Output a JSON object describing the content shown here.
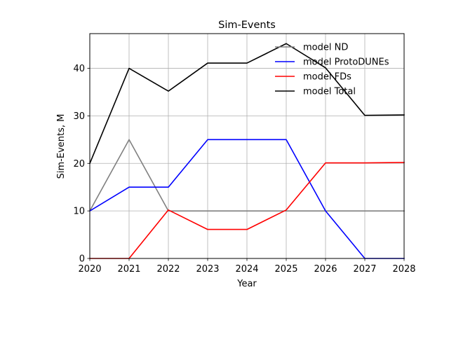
{
  "chart_data": {
    "type": "line",
    "title": "Sim-Events",
    "xlabel": "Year",
    "ylabel": "Sim-Events, M",
    "x": [
      2020,
      2021,
      2022,
      2023,
      2024,
      2025,
      2026,
      2027,
      2028
    ],
    "xlim": [
      2020,
      2028
    ],
    "ylim": [
      0,
      47.3
    ],
    "xticks": [
      "2020",
      "2021",
      "2022",
      "2023",
      "2024",
      "2025",
      "2026",
      "2027",
      "2028"
    ],
    "yticks": [
      0,
      10,
      20,
      30,
      40
    ],
    "grid": true,
    "legend_position": "top-right",
    "series": [
      {
        "name": "model ND",
        "color": "#808080",
        "values": [
          10,
          25,
          10,
          10,
          10,
          10,
          10,
          10,
          10
        ]
      },
      {
        "name": "model ProtoDUNEs",
        "color": "#0000ff",
        "values": [
          10,
          15,
          15,
          25,
          25,
          25,
          10,
          0,
          0
        ]
      },
      {
        "name": "model FDs",
        "color": "#ff0000",
        "values": [
          0,
          0,
          10.2,
          6.1,
          6.1,
          10.2,
          20.1,
          20.1,
          20.2
        ]
      },
      {
        "name": "model Total",
        "color": "#000000",
        "values": [
          20,
          40,
          35.2,
          41.1,
          41.1,
          45.2,
          40.1,
          30.1,
          30.2
        ]
      }
    ]
  }
}
